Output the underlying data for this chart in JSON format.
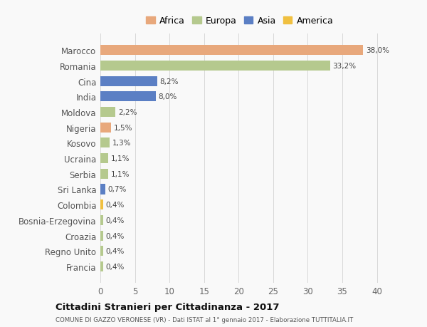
{
  "categories": [
    "Francia",
    "Regno Unito",
    "Croazia",
    "Bosnia-Erzegovina",
    "Colombia",
    "Sri Lanka",
    "Serbia",
    "Ucraina",
    "Kosovo",
    "Nigeria",
    "Moldova",
    "India",
    "Cina",
    "Romania",
    "Marocco"
  ],
  "values": [
    0.4,
    0.4,
    0.4,
    0.4,
    0.4,
    0.7,
    1.1,
    1.1,
    1.3,
    1.5,
    2.2,
    8.0,
    8.2,
    33.2,
    38.0
  ],
  "labels": [
    "0,4%",
    "0,4%",
    "0,4%",
    "0,4%",
    "0,4%",
    "0,7%",
    "1,1%",
    "1,1%",
    "1,3%",
    "1,5%",
    "2,2%",
    "8,0%",
    "8,2%",
    "33,2%",
    "38,0%"
  ],
  "colors": [
    "#b5c98e",
    "#b5c98e",
    "#b5c98e",
    "#b5c98e",
    "#f0c040",
    "#5b7fc4",
    "#b5c98e",
    "#b5c98e",
    "#b5c98e",
    "#e8a87c",
    "#b5c98e",
    "#5b7fc4",
    "#5b7fc4",
    "#b5c98e",
    "#e8a87c"
  ],
  "legend_labels": [
    "Africa",
    "Europa",
    "Asia",
    "America"
  ],
  "legend_colors": [
    "#e8a87c",
    "#b5c98e",
    "#5b7fc4",
    "#f0c040"
  ],
  "title": "Cittadini Stranieri per Cittadinanza - 2017",
  "subtitle": "COMUNE DI GAZZO VERONESE (VR) - Dati ISTAT al 1° gennaio 2017 - Elaborazione TUTTITALIA.IT",
  "xlim": [
    0,
    42
  ],
  "xticks": [
    0,
    5,
    10,
    15,
    20,
    25,
    30,
    35,
    40
  ],
  "background_color": "#f9f9f9",
  "bar_height": 0.65
}
